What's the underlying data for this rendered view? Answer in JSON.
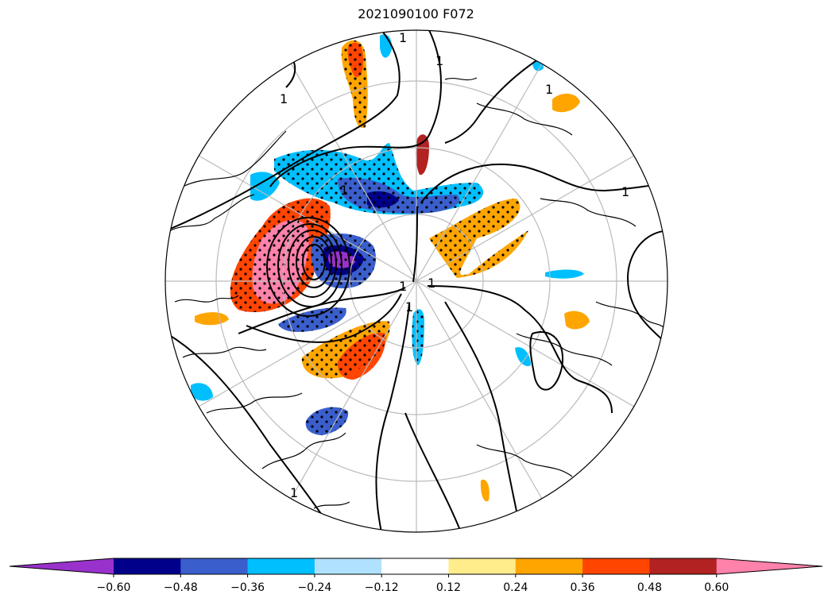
{
  "chart_data": {
    "type": "polar stereographic map (filled contours with stippling and line contours)",
    "title": "2021090100 F072",
    "projection": "north polar stereographic",
    "grid": true,
    "contour_line_labels": [
      "1",
      "1",
      "1",
      "1",
      "1",
      "1",
      "1",
      "1",
      "1",
      "1"
    ],
    "colorbar": {
      "orientation": "horizontal",
      "extend": "both",
      "levels": [
        -0.6,
        -0.48,
        -0.36,
        -0.24,
        -0.12,
        0.12,
        0.24,
        0.36,
        0.48,
        0.6
      ],
      "tick_labels": [
        "−0.60",
        "−0.48",
        "−0.36",
        "−0.24",
        "−0.12",
        "0.12",
        "0.24",
        "0.36",
        "0.48",
        "0.60"
      ],
      "colors": [
        "#9932cc",
        "#00008b",
        "#3a5fcd",
        "#00bfff",
        "#b0e2ff",
        "#ffffff",
        "#ffec8b",
        "#ffa500",
        "#ff4500",
        "#b22222",
        "#ff82ab"
      ]
    }
  }
}
